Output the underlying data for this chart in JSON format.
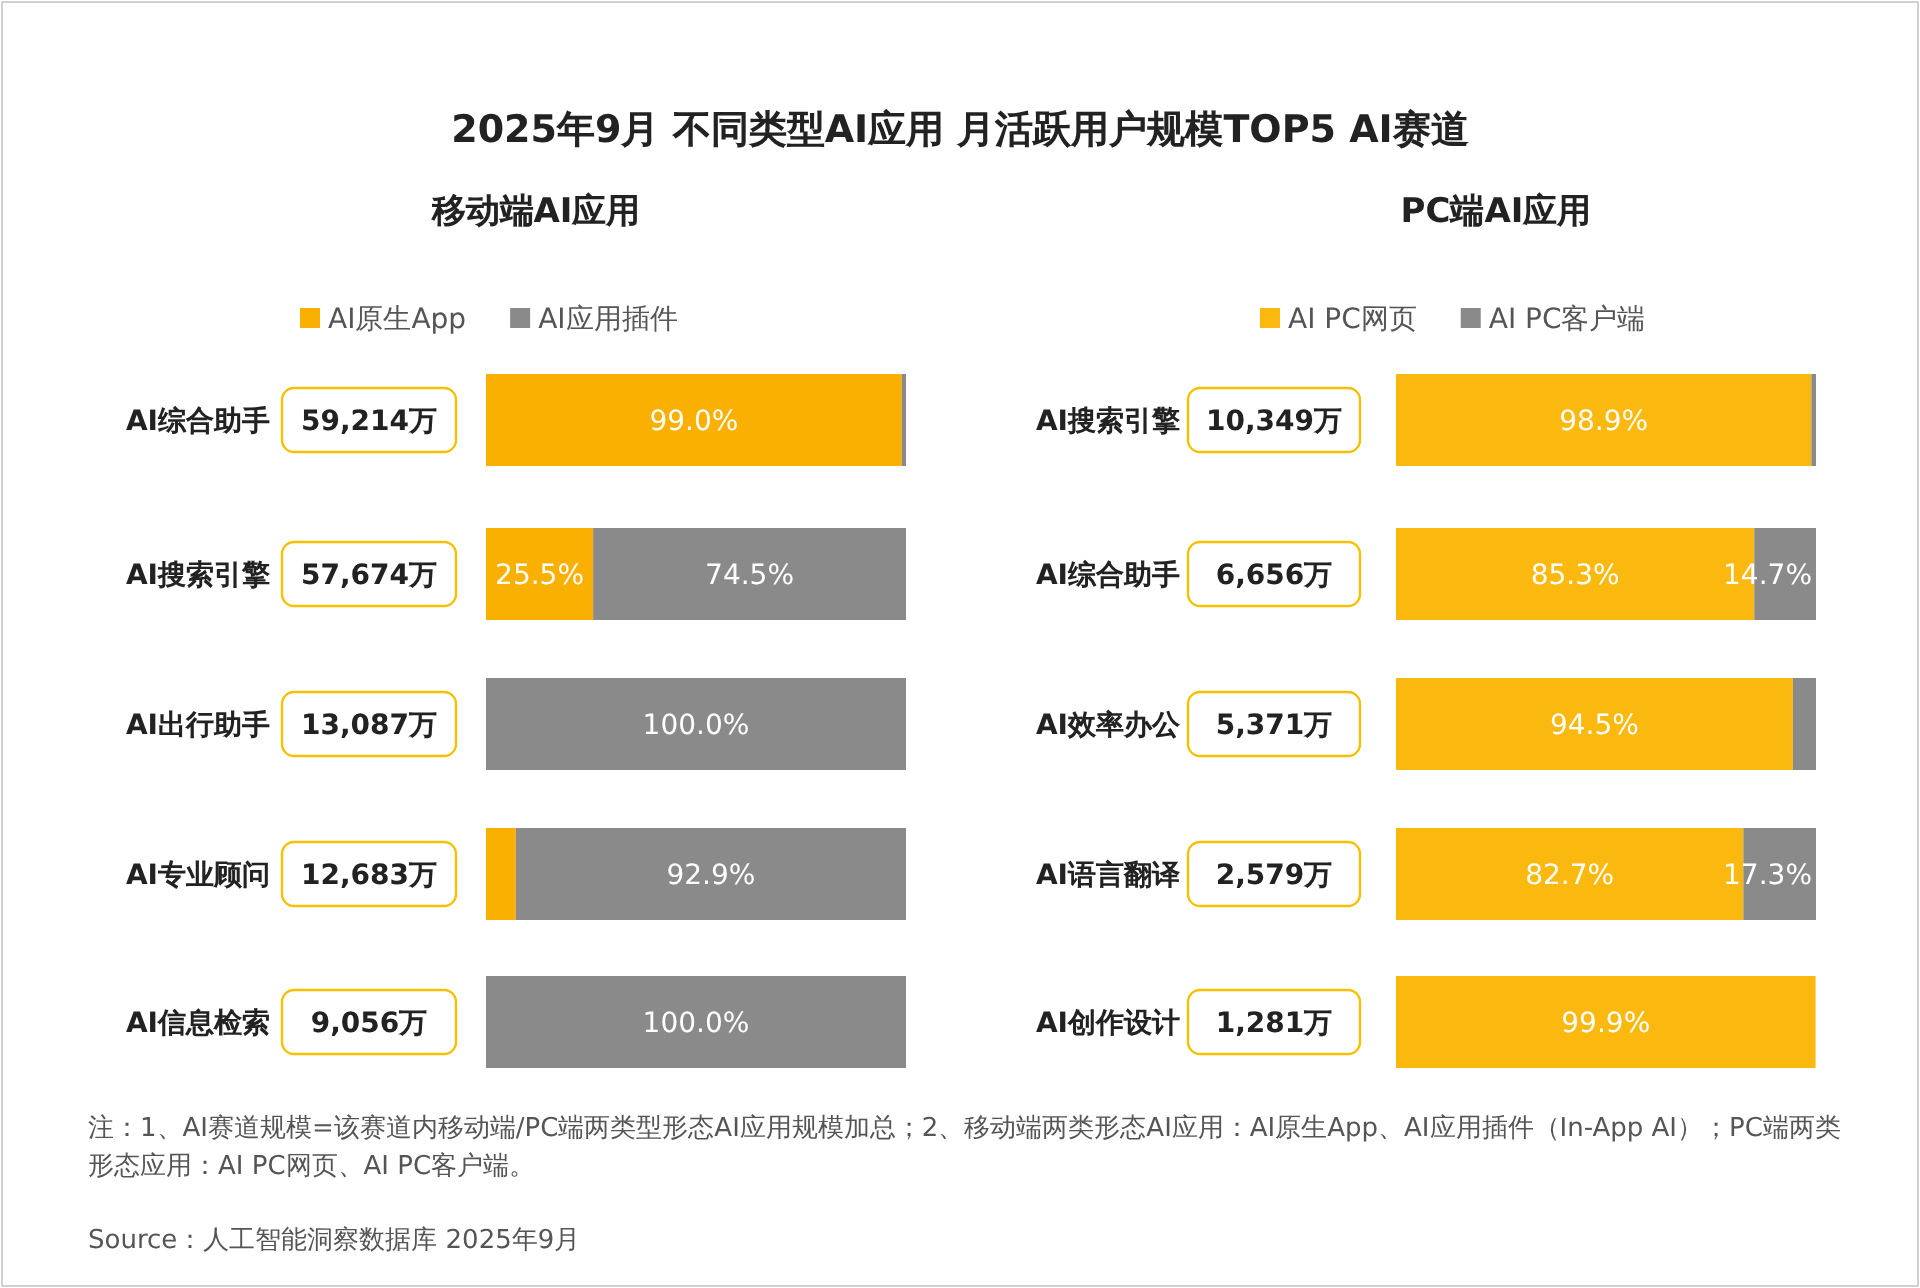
{
  "chart_data": [
    {
      "type": "bar",
      "orientation": "horizontal",
      "stacked": true,
      "legend": "top",
      "title": "2025年9月 不同类型AI应用 月活跃用户规模TOP5 AI赛道",
      "subtitle": "移动端AI应用",
      "categories": [
        "AI综合助手",
        "AI搜索引擎",
        "AI出行助手",
        "AI专业顾问",
        "AI信息检索"
      ],
      "series": [
        {
          "name": "AI原生App",
          "color": "#f9b000",
          "values": [
            99.0,
            25.5,
            0,
            7.1,
            0
          ],
          "value_labels": [
            "99.0%",
            "25.5%",
            null,
            null,
            null
          ]
        },
        {
          "name": "AI应用插件",
          "color": "#8a8a8a",
          "values": [
            1.0,
            74.5,
            100.0,
            92.9,
            100.0
          ],
          "value_labels": [
            null,
            "74.5%",
            "100.0%",
            "92.9%",
            "100.0%"
          ]
        }
      ],
      "annotations": [
        "59,214万",
        "57,674万",
        "13,087万",
        "12,683万",
        "9,056万",
        "注：1、AI赛道规模=该赛道内移动端/PC端两类型形态AI应用规模加总；2、移动端两类形态AI应用：AI原生App、AI应用插件（In-App AI）；PC端两类形态应用：AI PC网页、AI PC客户端。",
        "Source：人工智能洞察数据库 2025年9月"
      ]
    },
    {
      "type": "bar",
      "orientation": "horizontal",
      "stacked": true,
      "legend": "top",
      "title": "PC端AI应用",
      "categories": [
        "AI搜索引擎",
        "AI综合助手",
        "AI效率办公",
        "AI语言翻译",
        "AI创作设计"
      ],
      "series": [
        {
          "name": "AI PC网页",
          "color": "#fbb90f",
          "values": [
            98.9,
            85.3,
            94.5,
            82.7,
            99.9
          ],
          "value_labels": [
            "98.9%",
            "85.3%",
            "94.5%",
            "82.7%",
            "99.9%"
          ]
        },
        {
          "name": "AI PC客户端",
          "color": "#8a8a8a",
          "values": [
            1.1,
            14.7,
            5.5,
            17.3,
            null
          ],
          "value_labels": [
            null,
            "14.7%",
            null,
            "17.3%",
            null
          ]
        }
      ],
      "annotations": [
        "10,349万",
        "6,656万",
        "5,371万",
        "2,579万",
        "1,281万"
      ]
    }
  ]
}
